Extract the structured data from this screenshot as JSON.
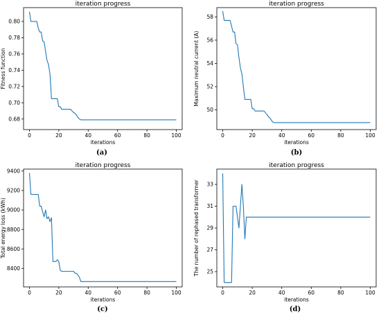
{
  "panels": [
    {
      "caption": "(a)"
    },
    {
      "caption": "(b)"
    },
    {
      "caption": "(c)"
    },
    {
      "caption": "(d)"
    }
  ],
  "chart_data": [
    {
      "type": "line",
      "title": "iteration progress",
      "xlabel": "iterations",
      "ylabel": "Fitness function",
      "xlim": [
        -4,
        104
      ],
      "ylim": [
        0.667,
        0.817
      ],
      "xticks": [
        0,
        20,
        40,
        60,
        80,
        100
      ],
      "yticks": [
        0.68,
        0.7,
        0.72,
        0.74,
        0.76,
        0.78,
        0.8
      ],
      "ytick_labels": [
        "0.68",
        "0.70",
        "0.72",
        "0.74",
        "0.76",
        "0.78",
        "0.80"
      ],
      "color": "#1f77b4",
      "x": [
        0,
        1,
        2,
        5,
        6,
        7,
        8,
        9,
        10,
        11,
        12,
        13,
        14,
        15,
        16,
        17,
        18,
        19,
        20,
        21,
        22,
        24,
        28,
        30,
        31,
        32,
        33,
        34,
        35,
        40,
        100
      ],
      "y": [
        0.812,
        0.8,
        0.8,
        0.8,
        0.792,
        0.787,
        0.787,
        0.776,
        0.775,
        0.763,
        0.752,
        0.747,
        0.735,
        0.705,
        0.705,
        0.705,
        0.705,
        0.705,
        0.695,
        0.695,
        0.692,
        0.692,
        0.692,
        0.688,
        0.687,
        0.685,
        0.682,
        0.68,
        0.679,
        0.679,
        0.679
      ]
    },
    {
      "type": "line",
      "title": "iteration progress",
      "xlabel": "iterations",
      "ylabel": "Maximum neutral current (A)",
      "xlim": [
        -4,
        104
      ],
      "ylim": [
        48.3,
        58.8
      ],
      "xticks": [
        0,
        20,
        40,
        60,
        80,
        100
      ],
      "yticks": [
        50,
        52,
        54,
        56,
        58
      ],
      "ytick_labels": [
        "50",
        "52",
        "54",
        "56",
        "58"
      ],
      "color": "#1f77b4",
      "x": [
        0,
        1,
        2,
        5,
        6,
        7,
        8,
        9,
        10,
        11,
        12,
        13,
        14,
        15,
        16,
        17,
        18,
        19,
        20,
        21,
        22,
        24,
        28,
        30,
        31,
        32,
        33,
        34,
        35,
        40,
        100
      ],
      "y": [
        58.5,
        57.7,
        57.7,
        57.7,
        57.2,
        56.7,
        56.7,
        55.7,
        55.6,
        54.5,
        53.6,
        53.1,
        52.0,
        50.9,
        50.9,
        50.9,
        50.9,
        50.9,
        50.1,
        50.1,
        49.9,
        49.9,
        49.9,
        49.6,
        49.4,
        49.3,
        49.1,
        48.95,
        48.9,
        48.9,
        48.9
      ]
    },
    {
      "type": "line",
      "title": "iteration progress",
      "xlabel": "iterations",
      "ylabel": "Total energy loss (kWh)",
      "xlim": [
        -4,
        104
      ],
      "ylim": [
        8210,
        9420
      ],
      "xticks": [
        0,
        20,
        40,
        60,
        80,
        100
      ],
      "yticks": [
        8400,
        8600,
        8800,
        9000,
        9200,
        9400
      ],
      "ytick_labels": [
        "8400",
        "8600",
        "8800",
        "9000",
        "9200",
        "9400"
      ],
      "color": "#1f77b4",
      "x": [
        0,
        1,
        2,
        6,
        7,
        8,
        9,
        10,
        11,
        12,
        13,
        14,
        15,
        16,
        17,
        18,
        19,
        20,
        21,
        22,
        30,
        31,
        32,
        33,
        34,
        35,
        40,
        100
      ],
      "y": [
        9380,
        9160,
        9160,
        9160,
        9040,
        9040,
        8980,
        8930,
        9000,
        8910,
        8930,
        8880,
        8920,
        8470,
        8470,
        8470,
        8490,
        8470,
        8380,
        8370,
        8370,
        8350,
        8350,
        8330,
        8310,
        8265,
        8265,
        8265
      ]
    },
    {
      "type": "line",
      "title": "iteration progress",
      "xlabel": "iterations",
      "ylabel": "The number of rephased transformer",
      "xlim": [
        -4,
        104
      ],
      "ylim": [
        23.6,
        34.4
      ],
      "xticks": [
        0,
        20,
        40,
        60,
        80,
        100
      ],
      "yticks": [
        25,
        27,
        29,
        31,
        33
      ],
      "ytick_labels": [
        "25",
        "27",
        "29",
        "31",
        "33"
      ],
      "color": "#1f77b4",
      "x": [
        0,
        1,
        2,
        6,
        7,
        9,
        10,
        11,
        13,
        14,
        15,
        16,
        17,
        18,
        100
      ],
      "y": [
        34,
        24,
        24,
        24,
        31,
        31,
        30,
        29,
        33,
        31,
        28,
        30,
        30,
        30,
        30
      ]
    }
  ]
}
